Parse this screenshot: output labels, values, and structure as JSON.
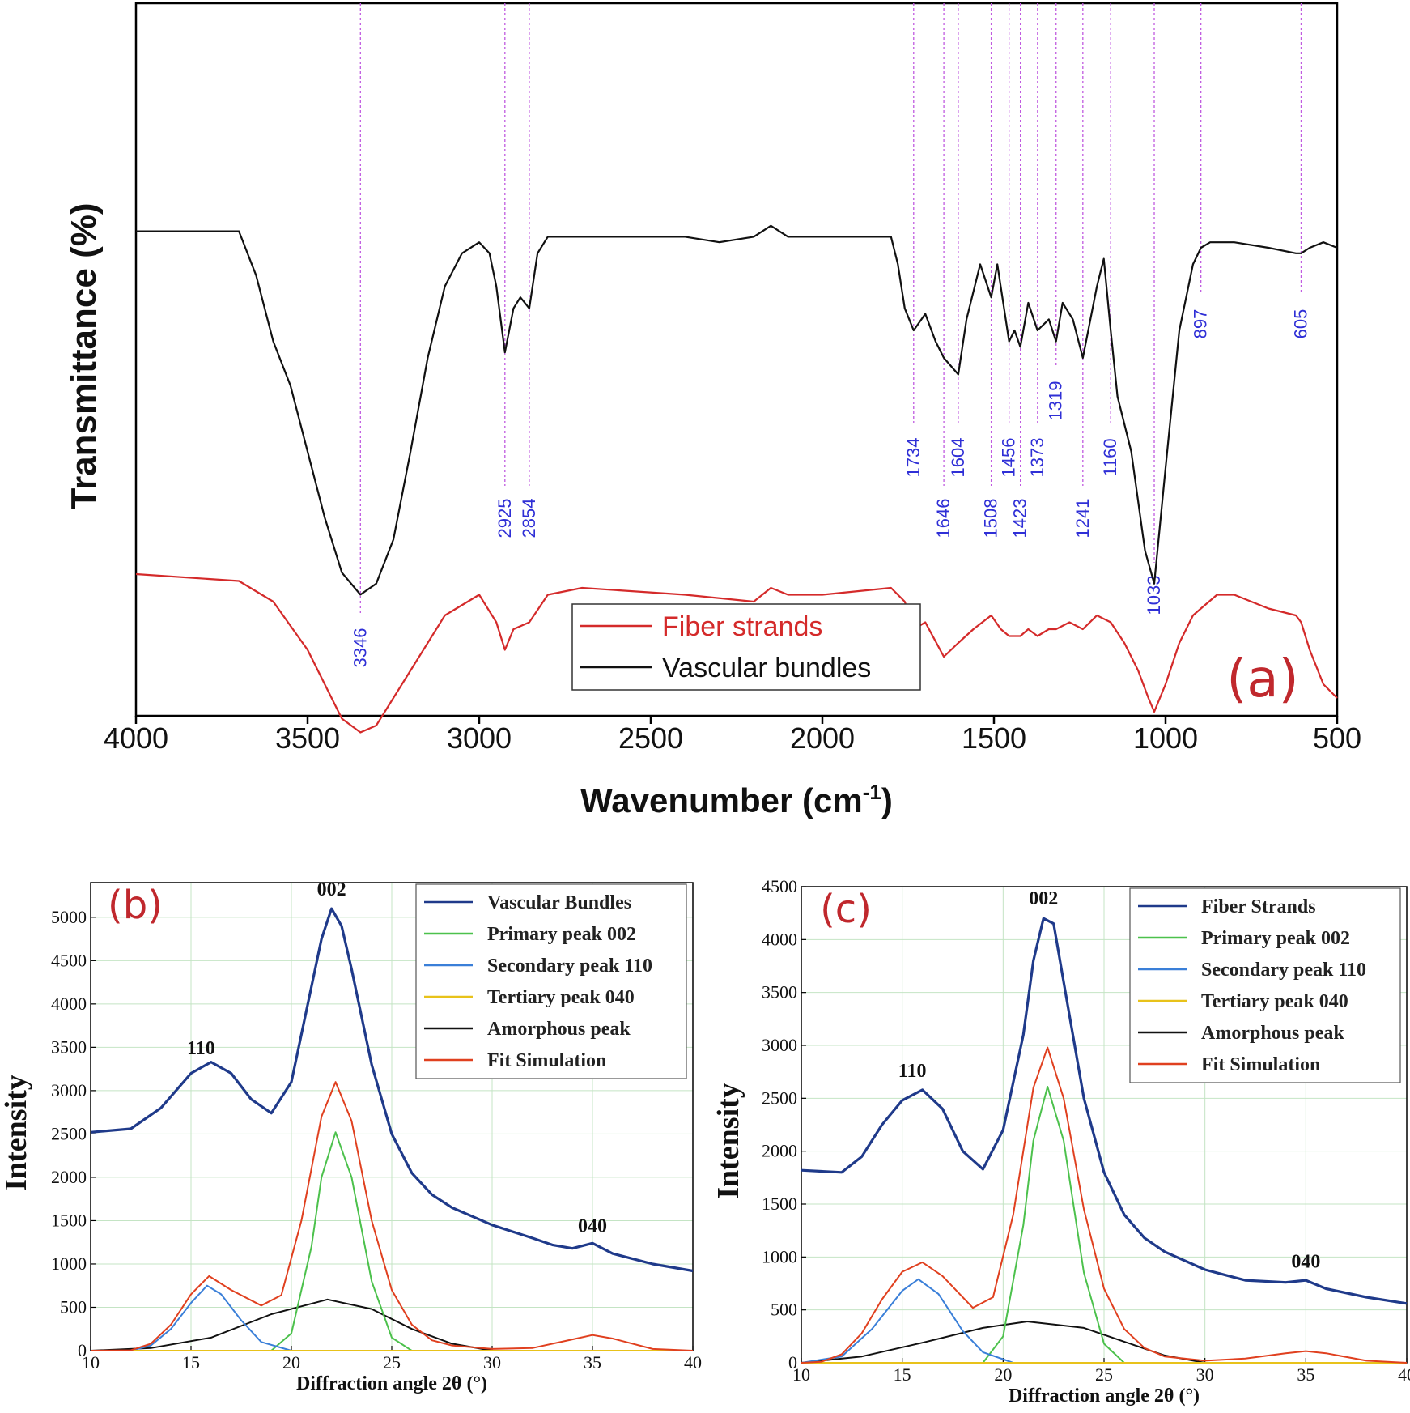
{
  "chart_data": [
    {
      "type": "line",
      "panel_label": "(a)",
      "xlabel": "Wavenumber (cm",
      "xlabel_sup": "-1",
      "xlabel_close": ")",
      "ylabel": "Transmittance (%)",
      "xlim": [
        4000,
        500
      ],
      "x_reversed": true,
      "xticks": [
        "4000",
        "3500",
        "3000",
        "2500",
        "2000",
        "1500",
        "1000",
        "500"
      ],
      "y_ticks_shown": false,
      "legend_position": "bottom-center",
      "series": [
        {
          "name": "Fiber strands",
          "color": "#d42a2a",
          "x": [
            4000,
            3700,
            3600,
            3500,
            3400,
            3346,
            3300,
            3200,
            3100,
            3000,
            2950,
            2925,
            2900,
            2854,
            2800,
            2700,
            2400,
            2200,
            2150,
            2100,
            2000,
            1800,
            1760,
            1734,
            1700,
            1646,
            1604,
            1560,
            1508,
            1480,
            1456,
            1423,
            1400,
            1373,
            1340,
            1319,
            1280,
            1241,
            1200,
            1160,
            1120,
            1080,
            1050,
            1033,
            1000,
            960,
            920,
            897,
            850,
            800,
            700,
            620,
            605,
            580,
            540,
            500
          ],
          "y": [
            96,
            95,
            92,
            85,
            75,
            73,
            74,
            82,
            90,
            93,
            89,
            85,
            88,
            89,
            93,
            94,
            93,
            92,
            94,
            93,
            93,
            94,
            92,
            88,
            89,
            84,
            86,
            88,
            90,
            88,
            87,
            87,
            88,
            87,
            88,
            88,
            89,
            88,
            90,
            89,
            86,
            82,
            78,
            76,
            80,
            86,
            90,
            91,
            93,
            93,
            91,
            90,
            89,
            85,
            80,
            78
          ]
        },
        {
          "name": "Vascular bundles",
          "color": "#111111",
          "x": [
            4000,
            3700,
            3650,
            3600,
            3550,
            3500,
            3450,
            3400,
            3346,
            3300,
            3250,
            3200,
            3150,
            3100,
            3050,
            3000,
            2970,
            2950,
            2925,
            2900,
            2880,
            2854,
            2830,
            2800,
            2700,
            2400,
            2300,
            2200,
            2150,
            2100,
            2000,
            1800,
            1780,
            1760,
            1734,
            1700,
            1670,
            1646,
            1604,
            1580,
            1540,
            1508,
            1490,
            1456,
            1440,
            1423,
            1400,
            1373,
            1340,
            1319,
            1300,
            1270,
            1241,
            1200,
            1180,
            1160,
            1140,
            1100,
            1060,
            1033,
            1000,
            960,
            920,
            897,
            870,
            800,
            700,
            620,
            605,
            580,
            540,
            500
          ],
          "y": [
            68,
            68,
            60,
            48,
            40,
            28,
            16,
            6,
            2,
            4,
            12,
            28,
            45,
            58,
            64,
            66,
            64,
            58,
            46,
            54,
            56,
            54,
            64,
            67,
            67,
            67,
            66,
            67,
            69,
            67,
            67,
            67,
            62,
            54,
            50,
            53,
            48,
            45,
            42,
            52,
            62,
            56,
            62,
            48,
            50,
            47,
            55,
            50,
            52,
            48,
            55,
            52,
            45,
            58,
            63,
            50,
            38,
            28,
            10,
            4,
            25,
            50,
            62,
            65,
            66,
            66,
            65,
            64,
            64,
            65,
            66,
            65
          ]
        }
      ],
      "annotations": [
        "3346",
        "2925",
        "2854",
        "1734",
        "1646",
        "1604",
        "1508",
        "1456",
        "1423",
        "1373",
        "1319",
        "1241",
        "1160",
        "1033",
        "897",
        "605"
      ]
    },
    {
      "type": "line",
      "panel_label": "(b)",
      "xlabel": "Diffraction angle 2θ (°)",
      "ylabel": "Intensity",
      "xlim": [
        10,
        40
      ],
      "ylim": [
        0,
        5400
      ],
      "xticks": [
        "10",
        "15",
        "20",
        "25",
        "30",
        "35",
        "40"
      ],
      "yticks": [
        "0",
        "500",
        "1000",
        "1500",
        "2000",
        "2500",
        "3000",
        "3500",
        "4000",
        "4500",
        "5000"
      ],
      "grid": true,
      "legend_position": "top-right",
      "peak_labels": [
        {
          "text": "110",
          "x": 15.5,
          "y": 3420
        },
        {
          "text": "002",
          "x": 22.0,
          "y": 5250
        },
        {
          "text": "040",
          "x": 35.0,
          "y": 1370
        }
      ],
      "series": [
        {
          "name": "Vascular Bundles",
          "color": "#1f3a8a",
          "x": [
            10,
            12,
            13.5,
            15,
            16,
            17,
            18,
            19,
            20,
            21,
            21.5,
            22,
            22.5,
            23,
            24,
            25,
            26,
            27,
            28,
            30,
            32,
            33,
            34,
            35,
            36,
            38,
            40
          ],
          "y": [
            2520,
            2560,
            2800,
            3200,
            3330,
            3200,
            2900,
            2740,
            3100,
            4200,
            4750,
            5100,
            4900,
            4400,
            3300,
            2500,
            2050,
            1800,
            1650,
            1450,
            1300,
            1220,
            1180,
            1240,
            1120,
            1000,
            920
          ]
        },
        {
          "name": "Primary peak 002",
          "color": "#4cc14c",
          "x": [
            19,
            20,
            21,
            21.5,
            22.2,
            23,
            24,
            25,
            26
          ],
          "y": [
            0,
            200,
            1200,
            2000,
            2520,
            2000,
            800,
            150,
            0
          ]
        },
        {
          "name": "Secondary peak 110",
          "color": "#3a7fd8",
          "x": [
            12,
            13,
            14,
            15,
            15.8,
            16.5,
            17.5,
            18.5,
            20
          ],
          "y": [
            0,
            60,
            250,
            550,
            750,
            650,
            350,
            100,
            0
          ]
        },
        {
          "name": "Tertiary peak 040",
          "color": "#e8c21a",
          "x": [
            10,
            40
          ],
          "y": [
            0,
            0
          ]
        },
        {
          "name": "Amorphous peak",
          "color": "#111111",
          "x": [
            10,
            13,
            16,
            19,
            21.8,
            24,
            26,
            28,
            30
          ],
          "y": [
            0,
            30,
            150,
            420,
            590,
            480,
            250,
            80,
            0
          ]
        },
        {
          "name": "Fit Simulation",
          "color": "#e0401f",
          "x": [
            10,
            12,
            13,
            14,
            15,
            15.9,
            17,
            18.5,
            19.5,
            20.5,
            21.5,
            22.2,
            23,
            24,
            25,
            26,
            27,
            28,
            30,
            32,
            34,
            35,
            36,
            38,
            40
          ],
          "y": [
            0,
            5,
            80,
            300,
            650,
            860,
            700,
            520,
            640,
            1500,
            2700,
            3100,
            2650,
            1500,
            700,
            300,
            120,
            60,
            20,
            30,
            130,
            180,
            140,
            20,
            0
          ]
        }
      ]
    },
    {
      "type": "line",
      "panel_label": "(c)",
      "xlabel": "Diffraction angle 2θ (°)",
      "ylabel": "Intensity",
      "xlim": [
        10,
        40
      ],
      "ylim": [
        0,
        4500
      ],
      "xticks": [
        "10",
        "15",
        "20",
        "25",
        "30",
        "35",
        "40"
      ],
      "yticks": [
        "0",
        "500",
        "1000",
        "1500",
        "2000",
        "2500",
        "3000",
        "3500",
        "4000",
        "4500"
      ],
      "grid": true,
      "legend_position": "top-right",
      "peak_labels": [
        {
          "text": "110",
          "x": 15.5,
          "y": 2700
        },
        {
          "text": "002",
          "x": 22.0,
          "y": 4330
        },
        {
          "text": "040",
          "x": 35.0,
          "y": 900
        }
      ],
      "series": [
        {
          "name": "Fiber Strands",
          "color": "#1f3a8a",
          "x": [
            10,
            12,
            13,
            14,
            15,
            16,
            17,
            18,
            19,
            20,
            21,
            21.5,
            22,
            22.5,
            23,
            24,
            25,
            26,
            27,
            28,
            30,
            32,
            34,
            35,
            36,
            38,
            40
          ],
          "y": [
            1820,
            1800,
            1950,
            2250,
            2480,
            2580,
            2400,
            2000,
            1830,
            2200,
            3100,
            3800,
            4200,
            4150,
            3600,
            2500,
            1800,
            1400,
            1180,
            1050,
            880,
            780,
            760,
            780,
            700,
            620,
            560
          ]
        },
        {
          "name": "Primary peak 002",
          "color": "#4cc14c",
          "x": [
            19,
            20,
            21,
            21.5,
            22.2,
            23,
            24,
            25,
            26
          ],
          "y": [
            0,
            250,
            1300,
            2100,
            2610,
            2100,
            850,
            180,
            0
          ]
        },
        {
          "name": "Secondary peak 110",
          "color": "#3a7fd8",
          "x": [
            10,
            12,
            13.5,
            15,
            15.8,
            16.8,
            18,
            19,
            20.5
          ],
          "y": [
            0,
            60,
            320,
            680,
            790,
            650,
            300,
            100,
            0
          ]
        },
        {
          "name": "Tertiary peak 040",
          "color": "#e8c21a",
          "x": [
            10,
            40
          ],
          "y": [
            0,
            0
          ]
        },
        {
          "name": "Amorphous peak",
          "color": "#111111",
          "x": [
            10,
            13,
            16,
            19,
            21.2,
            24,
            26,
            28,
            30
          ],
          "y": [
            0,
            60,
            190,
            330,
            390,
            330,
            200,
            70,
            0
          ]
        },
        {
          "name": "Fit Simulation",
          "color": "#e0401f",
          "x": [
            10,
            11,
            12,
            13,
            14,
            15,
            16,
            17,
            18.5,
            19.5,
            20.5,
            21.5,
            22.2,
            23,
            24,
            25,
            26,
            27,
            28,
            30,
            32,
            34,
            35,
            36,
            38,
            40
          ],
          "y": [
            0,
            10,
            80,
            280,
            600,
            860,
            950,
            820,
            520,
            620,
            1400,
            2600,
            2980,
            2500,
            1450,
            700,
            320,
            140,
            60,
            20,
            40,
            90,
            110,
            90,
            20,
            0
          ]
        }
      ]
    }
  ]
}
